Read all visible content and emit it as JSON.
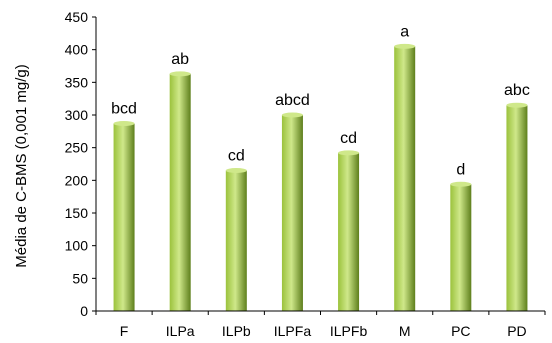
{
  "chart_data": {
    "type": "bar",
    "title": "",
    "xlabel": "",
    "ylabel": "Média de C-BMS (0,001 mg/g)",
    "ylim": [
      0,
      450
    ],
    "yticks": [
      0,
      50,
      100,
      150,
      200,
      250,
      300,
      350,
      400,
      450
    ],
    "grid": false,
    "legend": "none",
    "categories": [
      "F",
      "ILPa",
      "ILPb",
      "ILPFa",
      "ILPFb",
      "M",
      "PC",
      "PD"
    ],
    "values": [
      287,
      363,
      215,
      300,
      242,
      405,
      194,
      315
    ],
    "data_labels": [
      "bcd",
      "ab",
      "cd",
      "abcd",
      "cd",
      "a",
      "d",
      "abc"
    ],
    "colors": {
      "bar_light": "#cfe88a",
      "bar_mid": "#9bc23c",
      "bar_dark": "#5e7f1c",
      "axis": "#000000"
    }
  }
}
